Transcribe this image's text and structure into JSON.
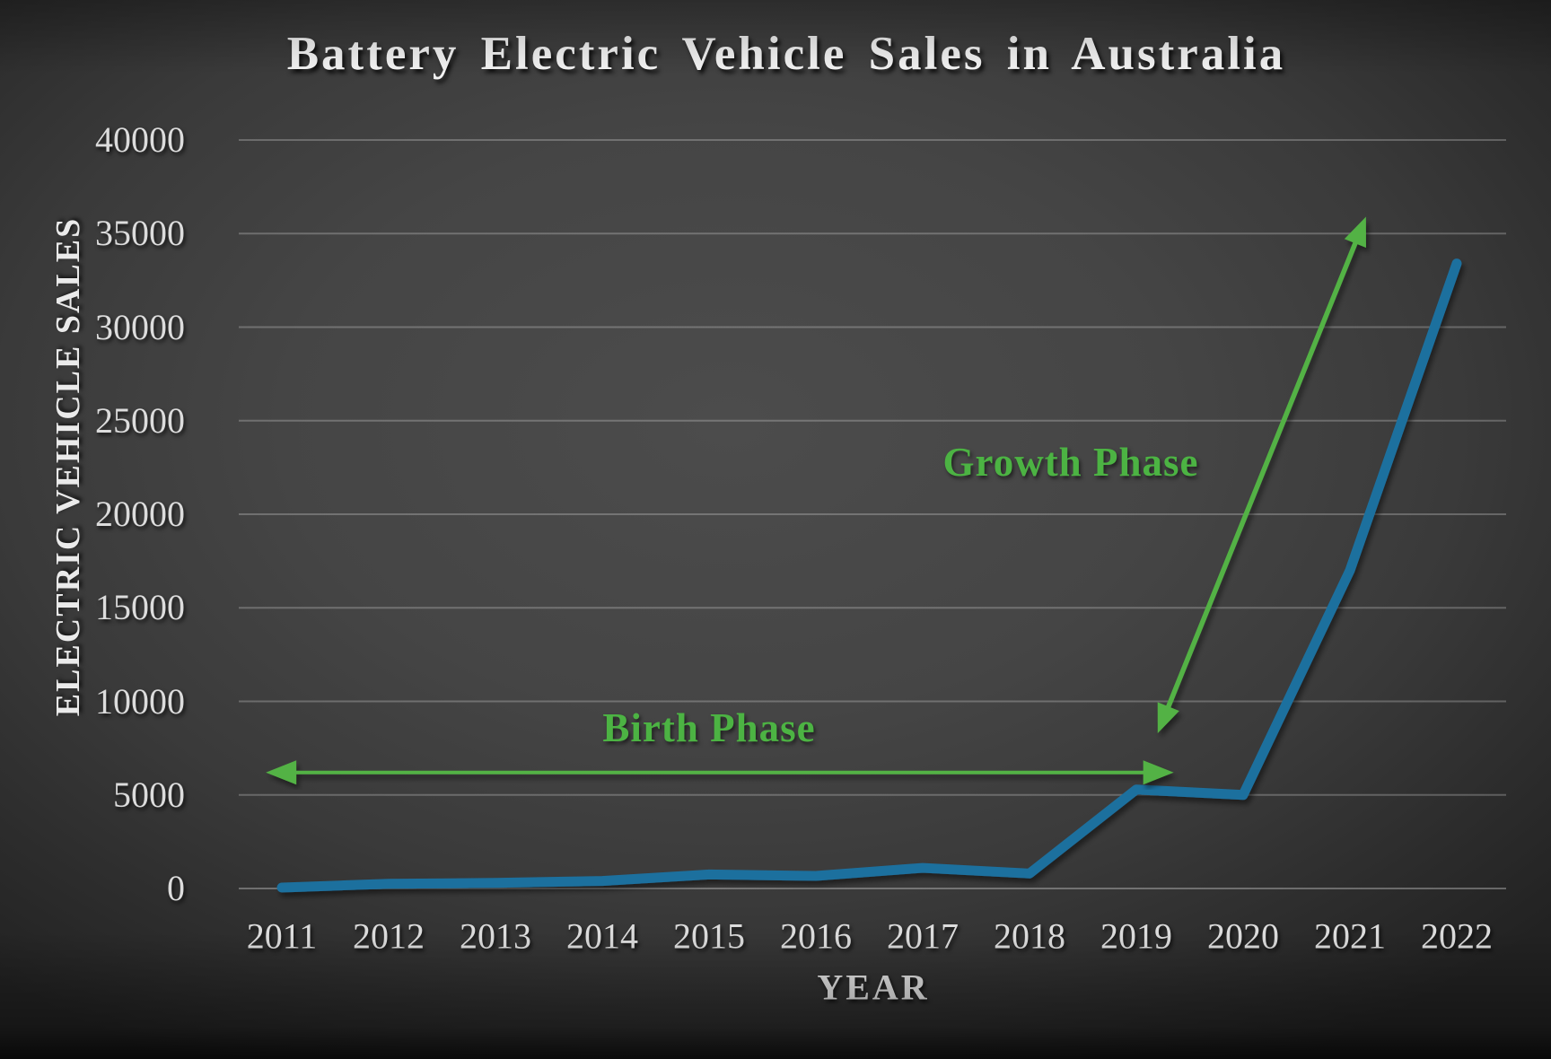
{
  "chart_data": {
    "type": "line",
    "title": "Battery Electric Vehicle Sales in Australia",
    "xlabel": "YEAR",
    "ylabel": "ELECTRIC VEHICLE SALES",
    "x": [
      2011,
      2012,
      2013,
      2014,
      2015,
      2016,
      2017,
      2018,
      2019,
      2020,
      2021,
      2022
    ],
    "series": [
      {
        "name": "Battery Electric Vehicle Sales",
        "values": [
          50,
          250,
          300,
          400,
          750,
          670,
          1100,
          800,
          5290,
          5000,
          17000,
          33400
        ]
      }
    ],
    "ylim": [
      0,
      40000
    ],
    "yticks": [
      0,
      5000,
      10000,
      15000,
      20000,
      25000,
      30000,
      35000,
      40000
    ],
    "grid": "horizontal-only",
    "legend_position": "none",
    "annotations": [
      {
        "text": "Birth Phase",
        "type": "double-arrow-horizontal",
        "y_value": 6200,
        "x_from": 2010.85,
        "x_to": 2019.35
      },
      {
        "text": "Growth Phase",
        "type": "double-arrow-diagonal",
        "from": {
          "x": 2019.2,
          "y_value": 8300
        },
        "to": {
          "x": 2021.15,
          "y_value": 35900
        }
      }
    ]
  },
  "colors": {
    "series_line": "#1f6f9e",
    "annotation_arrow_green": "#53b244",
    "phase_text_green": "#4cb343",
    "tick_text": "#dcdcdc",
    "title_text": "#f4f4f4",
    "gridline": "rgba(255,255,255,0.24)",
    "zero_gridline": "rgba(255,255,255,0.30)"
  }
}
